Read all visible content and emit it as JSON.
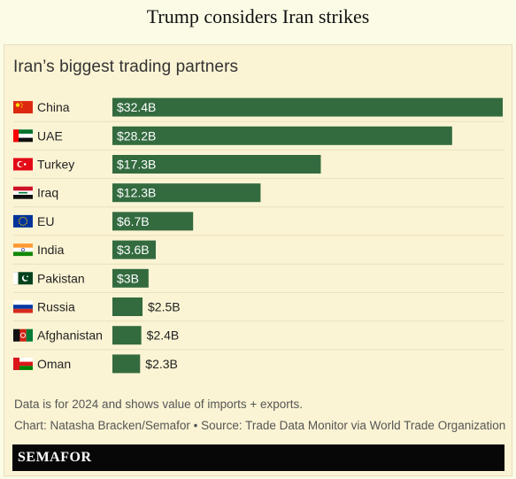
{
  "page": {
    "headline": "Trump considers Iran strikes"
  },
  "chart_data": {
    "type": "bar",
    "orientation": "horizontal",
    "title": "Iran’s biggest trading partners",
    "categories": [
      "China",
      "UAE",
      "Turkey",
      "Iraq",
      "EU",
      "India",
      "Pakistan",
      "Russia",
      "Afghanistan",
      "Oman"
    ],
    "values": [
      32.4,
      28.2,
      17.3,
      12.3,
      6.7,
      3.6,
      3.0,
      2.5,
      2.4,
      2.3
    ],
    "data_labels": [
      "$32.4B",
      "$28.2B",
      "$17.3B",
      "$12.3B",
      "$6.7B",
      "$3.6B",
      "$3B",
      "$2.5B",
      "$2.4B",
      "$2.3B"
    ],
    "flag_icons": [
      "china-flag-icon",
      "uae-flag-icon",
      "turkey-flag-icon",
      "iraq-flag-icon",
      "eu-flag-icon",
      "india-flag-icon",
      "pakistan-flag-icon",
      "russia-flag-icon",
      "afghanistan-flag-icon",
      "oman-flag-icon"
    ],
    "xlim": [
      0,
      32.4
    ],
    "bar_color": "#336b3f",
    "grid": false
  },
  "notes": {
    "line1": "Data is for 2024 and shows value of imports + exports.",
    "line2": "Chart: Natasha Bracken/Semafor • Source: Trade Data Monitor via World Trade Organization"
  },
  "brand": {
    "name": "SEMAFOR"
  }
}
